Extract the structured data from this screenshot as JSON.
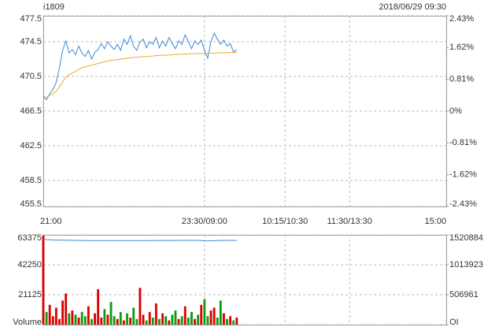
{
  "chart_data": [
    {
      "type": "line",
      "title": "i1809",
      "subtitle": "2018/06/29 09:30",
      "x": [
        0,
        3,
        6,
        9,
        12,
        15,
        18,
        21,
        24,
        27,
        30,
        33,
        36,
        39,
        42,
        45,
        48,
        51,
        54,
        57,
        60,
        63,
        66,
        69,
        72,
        75,
        78,
        81,
        84,
        87,
        90,
        93,
        96,
        99,
        102,
        105,
        108,
        111,
        114,
        117,
        120,
        123,
        126,
        129,
        132,
        135,
        138,
        141,
        144,
        147,
        150,
        153,
        156,
        159,
        162,
        165,
        168,
        171,
        174,
        177,
        180
      ],
      "series": [
        {
          "color": "#3a8ad6",
          "values": [
            468.2,
            467.8,
            468.5,
            469.0,
            469.8,
            471.5,
            473.5,
            474.6,
            473.2,
            473.6,
            473.0,
            474.0,
            473.2,
            472.8,
            473.5,
            472.5,
            473.3,
            473.6,
            474.3,
            473.7,
            474.5,
            474.0,
            473.6,
            474.2,
            473.5,
            474.8,
            474.2,
            475.2,
            474.0,
            473.5,
            474.5,
            474.8,
            473.8,
            474.5,
            474.2,
            475.0,
            473.8,
            474.6,
            474.0,
            475.0,
            474.3,
            473.7,
            474.6,
            474.2,
            475.3,
            474.5,
            473.7,
            474.6,
            474.2,
            474.7,
            473.5,
            472.6,
            474.5,
            475.5,
            474.8,
            474.2,
            474.7,
            474.0,
            474.3,
            473.3,
            473.6
          ]
        },
        {
          "color": "#f0a830",
          "values": [
            468.2,
            468.1,
            468.3,
            468.5,
            468.8,
            469.3,
            469.9,
            470.4,
            470.7,
            470.9,
            471.1,
            471.3,
            471.5,
            471.6,
            471.7,
            471.8,
            471.9,
            472.0,
            472.1,
            472.2,
            472.3,
            472.35,
            472.4,
            472.45,
            472.5,
            472.55,
            472.6,
            472.65,
            472.7,
            472.72,
            472.75,
            472.78,
            472.8,
            472.83,
            472.86,
            472.9,
            472.92,
            472.94,
            472.96,
            472.98,
            473.0,
            473.02,
            473.04,
            473.06,
            473.08,
            473.1,
            473.12,
            473.13,
            473.14,
            473.15,
            473.16,
            473.17,
            473.18,
            473.2,
            473.22,
            473.23,
            473.24,
            473.25,
            473.26,
            473.27,
            473.28
          ]
        }
      ],
      "xlim": [
        0,
        375
      ],
      "xticks": [
        {
          "value": 0,
          "label": "21:00"
        },
        {
          "value": 150,
          "label": "23:30/09:00"
        },
        {
          "value": 225,
          "label": "10:15/10:30"
        },
        {
          "value": 285,
          "label": "11:30/13:30"
        },
        {
          "value": 375,
          "label": "15:00"
        }
      ],
      "ylim": [
        455.5,
        477.5
      ],
      "yticks": [
        477.5,
        474.5,
        470.5,
        466.5,
        462.5,
        458.5,
        455.5
      ],
      "y2lim": [
        -2.43,
        2.43
      ],
      "y2ticks": [
        {
          "value": 2.43,
          "label": "2.43%"
        },
        {
          "value": 1.62,
          "label": "1.62%"
        },
        {
          "value": 0.81,
          "label": "0.81%"
        },
        {
          "value": 0,
          "label": "0%"
        },
        {
          "value": -0.81,
          "label": "-0.81%"
        },
        {
          "value": -1.62,
          "label": "-1.62%"
        },
        {
          "value": -2.43,
          "label": "-2.43%"
        }
      ],
      "grid": true,
      "up_color": "#cc0000",
      "down_color": "#009900"
    },
    {
      "type": "bar",
      "xlim": [
        0,
        375
      ],
      "series": [
        {
          "up_color": "#dd0000",
          "down_color": "#119911",
          "values": [
            63000,
            9000,
            14000,
            6000,
            12000,
            4000,
            17000,
            22000,
            8000,
            10000,
            7000,
            5000,
            9000,
            6000,
            13000,
            4000,
            8000,
            25000,
            5000,
            11000,
            7000,
            16000,
            6000,
            4000,
            9000,
            3000,
            8000,
            5000,
            12000,
            4000,
            26000,
            7000,
            3000,
            9000,
            5000,
            15000,
            4000,
            8000,
            6000,
            3000,
            7000,
            10000,
            4000,
            6000,
            13000,
            5000,
            9000,
            4000,
            7000,
            14000,
            18000,
            6000,
            10000,
            12000,
            5000,
            17000,
            8000,
            4000,
            6000,
            3000,
            5000
          ]
        },
        {
          "axis": "y2",
          "color": "#3a8ad6",
          "values": [
            1445000,
            1440000,
            1437000,
            1435000,
            1433000,
            1432000,
            1431000,
            1430000,
            1429000,
            1428000,
            1427000,
            1427000,
            1426000,
            1426000,
            1425000,
            1425000,
            1425000,
            1424000,
            1424000,
            1424000,
            1424000,
            1424000,
            1424000,
            1424000,
            1424000,
            1424000,
            1425000,
            1425000,
            1425000,
            1425000,
            1425000,
            1425000,
            1425000,
            1425000,
            1426000,
            1426000,
            1426000,
            1426000,
            1426000,
            1426000,
            1426000,
            1426000,
            1427000,
            1427000,
            1427000,
            1427000,
            1427000,
            1427000,
            1426000,
            1425000,
            1420000,
            1418000,
            1420000,
            1423000,
            1425000,
            1426000,
            1427000,
            1427000,
            1428000,
            1428000,
            1428000
          ]
        }
      ],
      "ylim": [
        0,
        63375
      ],
      "yticks": [
        63375,
        42250,
        21125,
        {
          "value": 0,
          "label": "Volume"
        }
      ],
      "y2lim": [
        0,
        1520884
      ],
      "y2ticks": [
        1520884,
        1013923,
        506961,
        {
          "value": 0,
          "label": "OI"
        }
      ],
      "grid": true
    }
  ]
}
